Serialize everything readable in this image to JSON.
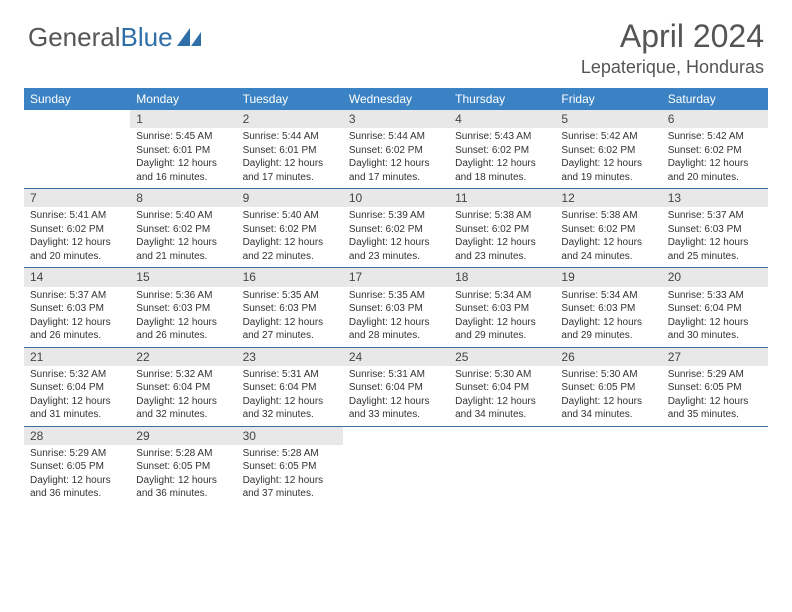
{
  "brand": {
    "part1": "General",
    "part2": "Blue"
  },
  "title": "April 2024",
  "location": "Lepaterique, Honduras",
  "colors": {
    "header_bg": "#3b82c4",
    "header_text": "#ffffff",
    "daynum_bg": "#e8e8e8",
    "week_border": "#3b6fa0",
    "brand_gray": "#555555",
    "brand_blue": "#2f6fa8"
  },
  "days_of_week": [
    "Sunday",
    "Monday",
    "Tuesday",
    "Wednesday",
    "Thursday",
    "Friday",
    "Saturday"
  ],
  "first_weekday_index": 1,
  "days": [
    {
      "n": 1,
      "sunrise": "5:45 AM",
      "sunset": "6:01 PM",
      "daylight": "12 hours and 16 minutes."
    },
    {
      "n": 2,
      "sunrise": "5:44 AM",
      "sunset": "6:01 PM",
      "daylight": "12 hours and 17 minutes."
    },
    {
      "n": 3,
      "sunrise": "5:44 AM",
      "sunset": "6:02 PM",
      "daylight": "12 hours and 17 minutes."
    },
    {
      "n": 4,
      "sunrise": "5:43 AM",
      "sunset": "6:02 PM",
      "daylight": "12 hours and 18 minutes."
    },
    {
      "n": 5,
      "sunrise": "5:42 AM",
      "sunset": "6:02 PM",
      "daylight": "12 hours and 19 minutes."
    },
    {
      "n": 6,
      "sunrise": "5:42 AM",
      "sunset": "6:02 PM",
      "daylight": "12 hours and 20 minutes."
    },
    {
      "n": 7,
      "sunrise": "5:41 AM",
      "sunset": "6:02 PM",
      "daylight": "12 hours and 20 minutes."
    },
    {
      "n": 8,
      "sunrise": "5:40 AM",
      "sunset": "6:02 PM",
      "daylight": "12 hours and 21 minutes."
    },
    {
      "n": 9,
      "sunrise": "5:40 AM",
      "sunset": "6:02 PM",
      "daylight": "12 hours and 22 minutes."
    },
    {
      "n": 10,
      "sunrise": "5:39 AM",
      "sunset": "6:02 PM",
      "daylight": "12 hours and 23 minutes."
    },
    {
      "n": 11,
      "sunrise": "5:38 AM",
      "sunset": "6:02 PM",
      "daylight": "12 hours and 23 minutes."
    },
    {
      "n": 12,
      "sunrise": "5:38 AM",
      "sunset": "6:02 PM",
      "daylight": "12 hours and 24 minutes."
    },
    {
      "n": 13,
      "sunrise": "5:37 AM",
      "sunset": "6:03 PM",
      "daylight": "12 hours and 25 minutes."
    },
    {
      "n": 14,
      "sunrise": "5:37 AM",
      "sunset": "6:03 PM",
      "daylight": "12 hours and 26 minutes."
    },
    {
      "n": 15,
      "sunrise": "5:36 AM",
      "sunset": "6:03 PM",
      "daylight": "12 hours and 26 minutes."
    },
    {
      "n": 16,
      "sunrise": "5:35 AM",
      "sunset": "6:03 PM",
      "daylight": "12 hours and 27 minutes."
    },
    {
      "n": 17,
      "sunrise": "5:35 AM",
      "sunset": "6:03 PM",
      "daylight": "12 hours and 28 minutes."
    },
    {
      "n": 18,
      "sunrise": "5:34 AM",
      "sunset": "6:03 PM",
      "daylight": "12 hours and 29 minutes."
    },
    {
      "n": 19,
      "sunrise": "5:34 AM",
      "sunset": "6:03 PM",
      "daylight": "12 hours and 29 minutes."
    },
    {
      "n": 20,
      "sunrise": "5:33 AM",
      "sunset": "6:04 PM",
      "daylight": "12 hours and 30 minutes."
    },
    {
      "n": 21,
      "sunrise": "5:32 AM",
      "sunset": "6:04 PM",
      "daylight": "12 hours and 31 minutes."
    },
    {
      "n": 22,
      "sunrise": "5:32 AM",
      "sunset": "6:04 PM",
      "daylight": "12 hours and 32 minutes."
    },
    {
      "n": 23,
      "sunrise": "5:31 AM",
      "sunset": "6:04 PM",
      "daylight": "12 hours and 32 minutes."
    },
    {
      "n": 24,
      "sunrise": "5:31 AM",
      "sunset": "6:04 PM",
      "daylight": "12 hours and 33 minutes."
    },
    {
      "n": 25,
      "sunrise": "5:30 AM",
      "sunset": "6:04 PM",
      "daylight": "12 hours and 34 minutes."
    },
    {
      "n": 26,
      "sunrise": "5:30 AM",
      "sunset": "6:05 PM",
      "daylight": "12 hours and 34 minutes."
    },
    {
      "n": 27,
      "sunrise": "5:29 AM",
      "sunset": "6:05 PM",
      "daylight": "12 hours and 35 minutes."
    },
    {
      "n": 28,
      "sunrise": "5:29 AM",
      "sunset": "6:05 PM",
      "daylight": "12 hours and 36 minutes."
    },
    {
      "n": 29,
      "sunrise": "5:28 AM",
      "sunset": "6:05 PM",
      "daylight": "12 hours and 36 minutes."
    },
    {
      "n": 30,
      "sunrise": "5:28 AM",
      "sunset": "6:05 PM",
      "daylight": "12 hours and 37 minutes."
    }
  ],
  "labels": {
    "sunrise_prefix": "Sunrise: ",
    "sunset_prefix": "Sunset: ",
    "daylight_prefix": "Daylight: "
  }
}
